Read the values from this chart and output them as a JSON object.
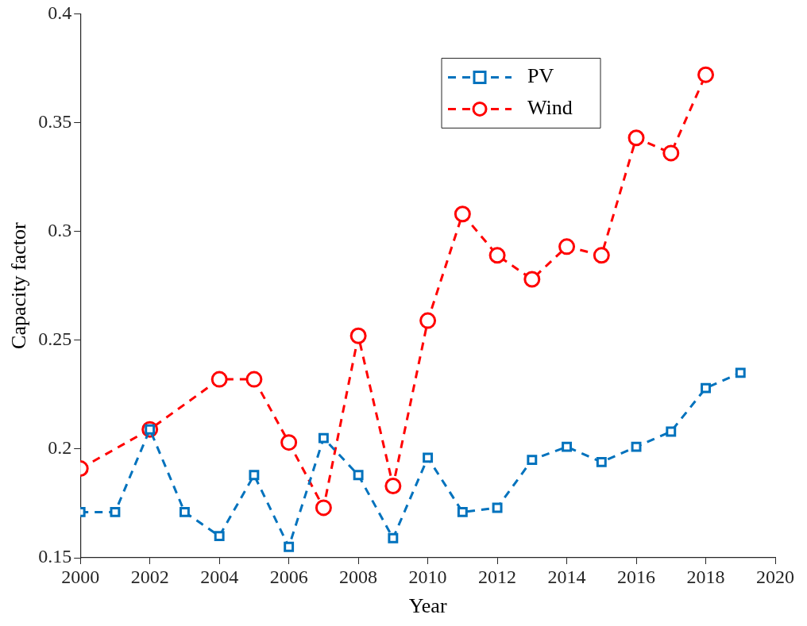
{
  "chart_data": {
    "type": "line",
    "xlabel": "Year",
    "ylabel": "Capacity factor",
    "xlim": [
      2000,
      2020
    ],
    "xticks": [
      2000,
      2002,
      2004,
      2006,
      2008,
      2010,
      2012,
      2014,
      2016,
      2018,
      2020
    ],
    "ylim": [
      0.15,
      0.4
    ],
    "yticks": [
      0.15,
      0.2,
      0.25,
      0.3,
      0.35,
      0.4
    ],
    "grid": false,
    "legend": "top right",
    "line_style": "dashed",
    "series": [
      {
        "name": "PV",
        "color": "#0072bd",
        "marker": "square",
        "x": [
          2000,
          2001,
          2002,
          2003,
          2004,
          2005,
          2006,
          2007,
          2008,
          2009,
          2010,
          2011,
          2012,
          2013,
          2014,
          2015,
          2016,
          2017,
          2018,
          2019
        ],
        "values": [
          0.171,
          0.171,
          0.209,
          0.171,
          0.16,
          0.188,
          0.155,
          0.205,
          0.188,
          0.159,
          0.196,
          0.171,
          0.173,
          0.195,
          0.201,
          0.194,
          0.201,
          0.208,
          0.228,
          0.235
        ]
      },
      {
        "name": "Wind",
        "color": "#ff0000",
        "marker": "circle",
        "x": [
          2000,
          2002,
          2004,
          2005,
          2006,
          2007,
          2008,
          2009,
          2010,
          2011,
          2012,
          2013,
          2014,
          2015,
          2016,
          2017,
          2018
        ],
        "values": [
          0.191,
          0.209,
          0.232,
          0.232,
          0.203,
          0.173,
          0.252,
          0.183,
          0.259,
          0.308,
          0.289,
          0.278,
          0.293,
          0.289,
          0.343,
          0.336,
          0.372
        ]
      }
    ]
  }
}
